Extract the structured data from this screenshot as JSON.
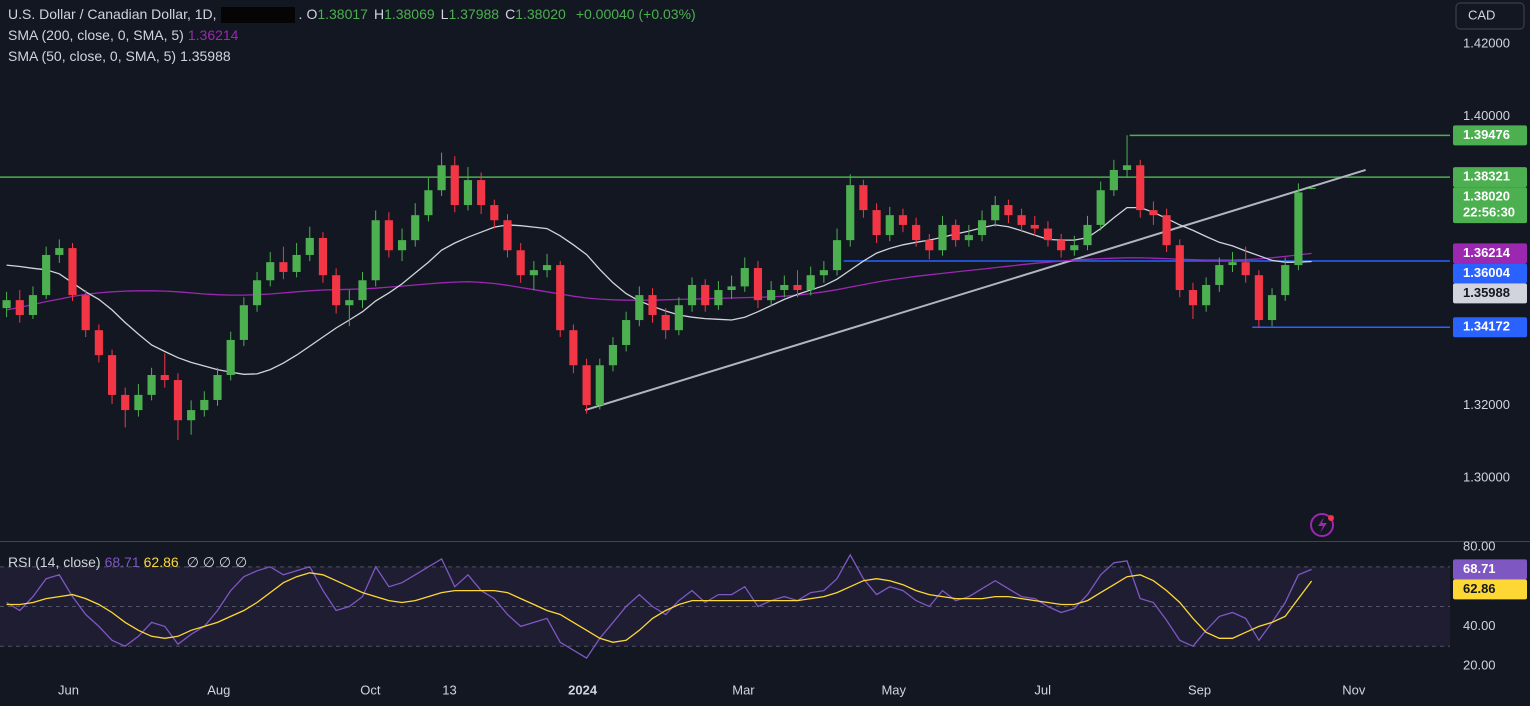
{
  "chart_data": [
    {
      "type": "candlestick",
      "title": "U.S. Dollar / Canadian Dollar, 1D,",
      "exchange": ".",
      "quote": [
        {
          "key": "O",
          "value": 1.38017
        },
        {
          "key": "H",
          "value": 1.38069
        },
        {
          "key": "L",
          "value": 1.37988
        },
        {
          "key": "C",
          "value": 1.3802,
          "label": "1.38020"
        }
      ],
      "change": "+0.00040 (+0.03%)",
      "currency": "CAD",
      "xlim": [
        0,
        110
      ],
      "xticks": [
        {
          "value": 5.2,
          "label": "Jun"
        },
        {
          "value": 16.6,
          "label": "Aug"
        },
        {
          "value": 28.1,
          "label": "Oct"
        },
        {
          "value": 34.1,
          "label": "13"
        },
        {
          "value": 44.2,
          "label": "2024"
        },
        {
          "value": 56.4,
          "label": "Mar"
        },
        {
          "value": 67.8,
          "label": "May"
        },
        {
          "value": 79.1,
          "label": "Jul"
        },
        {
          "value": 91.0,
          "label": "Sep"
        },
        {
          "value": 102.7,
          "label": "Nov"
        }
      ],
      "ylim": [
        1.2826,
        1.4322
      ],
      "yticks": [
        {
          "value": 1.3,
          "label": "1.30000"
        },
        {
          "value": 1.32,
          "label": "1.32000"
        },
        {
          "value": 1.4,
          "label": "1.40000"
        },
        {
          "value": 1.42,
          "label": "1.42000"
        }
      ],
      "up_color": "#4caf50",
      "down_color": "#f23645",
      "open": [
        1.347,
        1.3492,
        1.3451,
        1.3506,
        1.3617,
        1.3636,
        1.3506,
        1.3409,
        1.334,
        1.323,
        1.3188,
        1.323,
        1.3285,
        1.3271,
        1.316,
        1.3188,
        1.3216,
        1.3285,
        1.3382,
        1.3478,
        1.3547,
        1.3597,
        1.357,
        1.3617,
        1.3664,
        1.3561,
        1.3478,
        1.3492,
        1.3547,
        1.3713,
        1.363,
        1.3658,
        1.3727,
        1.3796,
        1.3865,
        1.3755,
        1.3824,
        1.3755,
        1.3713,
        1.363,
        1.3561,
        1.3575,
        1.3589,
        1.3409,
        1.3312,
        1.3202,
        1.3312,
        1.3368,
        1.3437,
        1.3506,
        1.3451,
        1.3409,
        1.3478,
        1.3534,
        1.3478,
        1.352,
        1.353,
        1.3581,
        1.3492,
        1.352,
        1.3534,
        1.352,
        1.3561,
        1.3575,
        1.3658,
        1.381,
        1.3741,
        1.3672,
        1.3727,
        1.37,
        1.3658,
        1.363,
        1.37,
        1.3658,
        1.3672,
        1.3713,
        1.3755,
        1.3727,
        1.37,
        1.369,
        1.3658,
        1.363,
        1.3644,
        1.37,
        1.3796,
        1.3852,
        1.3865,
        1.3741,
        1.3727,
        1.3644,
        1.352,
        1.3478,
        1.3534,
        1.3589,
        1.3597,
        1.3561,
        1.3437,
        1.3506,
        1.3589,
        1.38017
      ],
      "high": [
        1.3515,
        1.352,
        1.353,
        1.364,
        1.366,
        1.365,
        1.352,
        1.3425,
        1.3355,
        1.325,
        1.326,
        1.3305,
        1.3345,
        1.329,
        1.3215,
        1.324,
        1.3305,
        1.3405,
        1.35,
        1.357,
        1.3625,
        1.364,
        1.365,
        1.3695,
        1.368,
        1.358,
        1.352,
        1.357,
        1.374,
        1.3735,
        1.369,
        1.376,
        1.383,
        1.39,
        1.389,
        1.386,
        1.3845,
        1.377,
        1.373,
        1.365,
        1.36,
        1.362,
        1.36,
        1.3425,
        1.333,
        1.333,
        1.339,
        1.346,
        1.353,
        1.3525,
        1.347,
        1.35,
        1.3555,
        1.355,
        1.3545,
        1.356,
        1.361,
        1.36,
        1.3545,
        1.356,
        1.3575,
        1.3585,
        1.36,
        1.369,
        1.384,
        1.3825,
        1.376,
        1.375,
        1.3745,
        1.372,
        1.3675,
        1.3725,
        1.3715,
        1.37,
        1.374,
        1.378,
        1.377,
        1.3745,
        1.3725,
        1.371,
        1.3675,
        1.367,
        1.3725,
        1.382,
        1.388,
        1.3948,
        1.388,
        1.3765,
        1.3745,
        1.366,
        1.354,
        1.3555,
        1.361,
        1.3625,
        1.364,
        1.3575,
        1.3525,
        1.361,
        1.3815,
        1.38069
      ],
      "low": [
        1.3445,
        1.343,
        1.344,
        1.3495,
        1.3595,
        1.349,
        1.339,
        1.332,
        1.3205,
        1.314,
        1.317,
        1.3215,
        1.325,
        1.3105,
        1.312,
        1.317,
        1.32,
        1.327,
        1.3365,
        1.346,
        1.353,
        1.355,
        1.3555,
        1.36,
        1.354,
        1.3455,
        1.342,
        1.347,
        1.353,
        1.361,
        1.36,
        1.364,
        1.371,
        1.378,
        1.3735,
        1.374,
        1.373,
        1.369,
        1.361,
        1.354,
        1.352,
        1.3555,
        1.339,
        1.329,
        1.3178,
        1.319,
        1.3295,
        1.335,
        1.342,
        1.343,
        1.3385,
        1.3395,
        1.346,
        1.346,
        1.3465,
        1.3495,
        1.3515,
        1.347,
        1.3475,
        1.35,
        1.35,
        1.3505,
        1.354,
        1.356,
        1.364,
        1.372,
        1.365,
        1.3655,
        1.368,
        1.364,
        1.3605,
        1.3615,
        1.364,
        1.364,
        1.3655,
        1.3695,
        1.3705,
        1.368,
        1.367,
        1.364,
        1.361,
        1.3615,
        1.363,
        1.3685,
        1.378,
        1.383,
        1.372,
        1.37,
        1.3625,
        1.35,
        1.344,
        1.346,
        1.3515,
        1.357,
        1.354,
        1.3417,
        1.342,
        1.349,
        1.3575,
        1.37988
      ],
      "close": [
        1.3492,
        1.3451,
        1.3506,
        1.3617,
        1.3636,
        1.3506,
        1.3409,
        1.334,
        1.323,
        1.3188,
        1.323,
        1.3285,
        1.3271,
        1.316,
        1.3188,
        1.3216,
        1.3285,
        1.3382,
        1.3478,
        1.3547,
        1.3597,
        1.357,
        1.3617,
        1.3664,
        1.3561,
        1.3478,
        1.3492,
        1.3547,
        1.3713,
        1.363,
        1.3658,
        1.3727,
        1.3796,
        1.3865,
        1.3755,
        1.3824,
        1.3755,
        1.3713,
        1.363,
        1.3561,
        1.3575,
        1.3589,
        1.3409,
        1.3312,
        1.3202,
        1.3312,
        1.3368,
        1.3437,
        1.3506,
        1.3451,
        1.3409,
        1.3478,
        1.3534,
        1.3478,
        1.352,
        1.353,
        1.3581,
        1.3492,
        1.352,
        1.3534,
        1.352,
        1.3561,
        1.3575,
        1.3658,
        1.381,
        1.3741,
        1.3672,
        1.3727,
        1.37,
        1.3658,
        1.363,
        1.37,
        1.3658,
        1.3672,
        1.3713,
        1.3755,
        1.3727,
        1.37,
        1.369,
        1.3658,
        1.363,
        1.3644,
        1.37,
        1.3796,
        1.3852,
        1.3865,
        1.3741,
        1.3727,
        1.3644,
        1.352,
        1.3478,
        1.3534,
        1.3589,
        1.3597,
        1.3561,
        1.3437,
        1.3506,
        1.3589,
        1.379,
        1.3802
      ],
      "overlays": [
        {
          "name": "SMA (200, close, 0, SMA, 5)",
          "color": "#9c27b0",
          "last": 1.36214,
          "values": [
            1.3465,
            1.3472,
            1.348,
            1.3488,
            1.3495,
            1.3502,
            1.3508,
            1.3512,
            1.3515,
            1.3517,
            1.3518,
            1.3518,
            1.3517,
            1.3515,
            1.3512,
            1.3509,
            1.3507,
            1.3506,
            1.3506,
            1.3507,
            1.3509,
            1.3512,
            1.3515,
            1.3518,
            1.352,
            1.3521,
            1.3522,
            1.3523,
            1.3525,
            1.3528,
            1.3531,
            1.3534,
            1.3537,
            1.354,
            1.3542,
            1.3543,
            1.3541,
            1.3538,
            1.3533,
            1.3527,
            1.3521,
            1.3515,
            1.3509,
            1.3503,
            1.3498,
            1.3495,
            1.3493,
            1.3492,
            1.3492,
            1.3492,
            1.3493,
            1.3494,
            1.3495,
            1.3496,
            1.3497,
            1.3498,
            1.3499,
            1.35,
            1.3501,
            1.3503,
            1.3506,
            1.351,
            1.3515,
            1.3521,
            1.3528,
            1.3535,
            1.3542,
            1.3548,
            1.3553,
            1.3558,
            1.3562,
            1.3566,
            1.357,
            1.3574,
            1.3578,
            1.3582,
            1.3586,
            1.359,
            1.3594,
            1.3597,
            1.36,
            1.3603,
            1.3605,
            1.3607,
            1.3608,
            1.3609,
            1.3609,
            1.3608,
            1.3607,
            1.3605,
            1.3604,
            1.3603,
            1.3603,
            1.3603,
            1.3604,
            1.3606,
            1.3609,
            1.3613,
            1.3617,
            1.36214
          ]
        },
        {
          "name": "SMA (50, close, 0, SMA, 5)",
          "color": "#d1d4dc",
          "last": 1.35988,
          "values": [
            1.3589,
            1.3585,
            1.358,
            1.3576,
            1.3565,
            1.354,
            1.3515,
            1.3494,
            1.3465,
            1.343,
            1.3398,
            1.3368,
            1.335,
            1.3333,
            1.332,
            1.331,
            1.33,
            1.3293,
            1.3287,
            1.3288,
            1.33,
            1.3318,
            1.334,
            1.3365,
            1.339,
            1.3415,
            1.3437,
            1.346,
            1.349,
            1.3512,
            1.3537,
            1.3567,
            1.3597,
            1.363,
            1.365,
            1.3666,
            1.368,
            1.3694,
            1.37,
            1.3698,
            1.3694,
            1.369,
            1.367,
            1.3645,
            1.3618,
            1.3577,
            1.354,
            1.351,
            1.349,
            1.3475,
            1.3462,
            1.3451,
            1.3445,
            1.3441,
            1.3439,
            1.3437,
            1.3445,
            1.346,
            1.3477,
            1.3494,
            1.3508,
            1.352,
            1.3532,
            1.355,
            1.3575,
            1.36,
            1.3622,
            1.3635,
            1.3645,
            1.3652,
            1.3658,
            1.3666,
            1.3675,
            1.3683,
            1.3692,
            1.37,
            1.3695,
            1.3684,
            1.3672,
            1.366,
            1.3658,
            1.3658,
            1.3665,
            1.369,
            1.372,
            1.3748,
            1.3748,
            1.3735,
            1.3718,
            1.37,
            1.3685,
            1.3668,
            1.3652,
            1.3642,
            1.3628,
            1.3615,
            1.3602,
            1.3597,
            1.3597,
            1.35988
          ]
        }
      ],
      "levels": [
        {
          "value": 1.39476,
          "from": 85.7,
          "color": "#4caf50"
        },
        {
          "value": 1.38321,
          "from": 0,
          "color": "#4caf50"
        },
        {
          "value": 1.36004,
          "from": 64.0,
          "color": "#2962ff"
        },
        {
          "value": 1.34172,
          "from": 95.0,
          "color": "#2962ff"
        }
      ],
      "trendline": {
        "x": [
          44.4,
          103.6
        ],
        "y": [
          1.3188,
          1.3852
        ],
        "color": "#b2b5be"
      },
      "last_price": {
        "value": 1.3802,
        "label": "1.38020",
        "countdown": "22:56:30"
      }
    },
    {
      "type": "line",
      "title": "RSI (14, close)",
      "inputs": "∅ ∅ ∅ ∅",
      "xlim": [
        0,
        110
      ],
      "ylim": [
        15,
        82.5
      ],
      "yticks": [
        {
          "value": 20,
          "label": "20.00"
        },
        {
          "value": 40,
          "label": "40.00"
        },
        {
          "value": 80,
          "label": "80.00"
        }
      ],
      "bands": [
        70,
        50,
        30
      ],
      "series": [
        {
          "color": "#7e57c2",
          "last": 68.71,
          "values": [
            52,
            48,
            55,
            64,
            66,
            55,
            46,
            40,
            33,
            30,
            35,
            42,
            40,
            31,
            36,
            40,
            48,
            58,
            65,
            68,
            70,
            66,
            68,
            70,
            58,
            48,
            50,
            55,
            70,
            60,
            62,
            66,
            70,
            74,
            60,
            66,
            58,
            54,
            46,
            40,
            42,
            44,
            32,
            28,
            24,
            34,
            42,
            50,
            56,
            50,
            46,
            53,
            58,
            52,
            56,
            56,
            60,
            50,
            53,
            55,
            53,
            57,
            58,
            64,
            76,
            64,
            56,
            60,
            58,
            53,
            50,
            58,
            53,
            55,
            59,
            63,
            59,
            55,
            54,
            50,
            47,
            49,
            56,
            66,
            72,
            73,
            54,
            52,
            43,
            33,
            30,
            38,
            45,
            47,
            44,
            33,
            42,
            52,
            66,
            68.71
          ]
        },
        {
          "color": "#fdd835",
          "last": 62.86,
          "values": [
            51,
            51,
            52,
            54,
            55,
            56,
            54,
            51,
            47,
            42,
            38,
            35,
            34,
            35,
            38,
            40,
            42,
            45,
            48,
            52,
            57,
            62,
            65,
            67,
            66,
            63,
            60,
            57,
            55,
            53,
            52,
            53,
            55,
            57,
            58,
            58,
            58,
            58,
            57,
            54,
            51,
            48,
            46,
            42,
            38,
            34,
            32,
            33,
            38,
            44,
            48,
            51,
            53,
            53,
            53,
            53,
            53,
            53,
            53,
            53,
            53,
            54,
            55,
            57,
            60,
            63,
            64,
            63,
            61,
            58,
            56,
            55,
            54,
            54,
            54,
            55,
            55,
            54,
            53,
            52,
            51,
            51,
            53,
            57,
            61,
            65,
            66,
            63,
            58,
            52,
            44,
            37,
            34,
            34,
            37,
            40,
            42,
            45,
            54,
            62.86
          ]
        }
      ]
    }
  ]
}
